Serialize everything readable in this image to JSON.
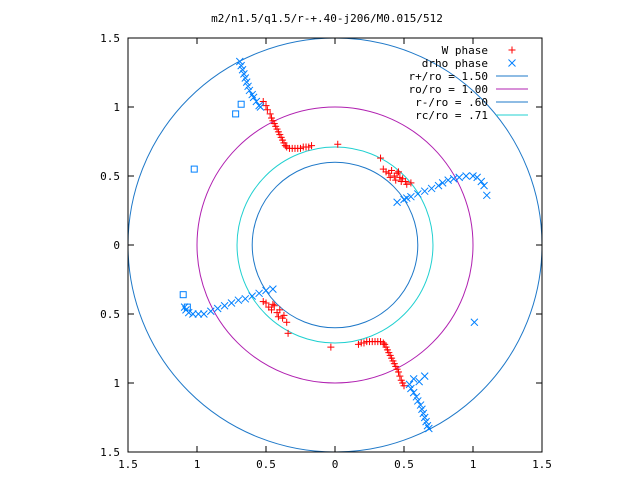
{
  "chart_data": {
    "type": "scatter",
    "title": "m2/n1.5/q1.5/r-+.40-j206/M0.015/512",
    "xlabel": "",
    "ylabel": "",
    "xlim": [
      -1.5,
      1.5
    ],
    "ylim": [
      -1.5,
      1.5
    ],
    "x_ticks": [
      "1.5",
      "1",
      "0.5",
      "0",
      "0.5",
      "1",
      "1.5"
    ],
    "y_ticks": [
      "1.5",
      "1",
      "0.5",
      "0",
      "0.5",
      "1",
      "1.5"
    ],
    "x_tick_values": [
      -1.5,
      -1,
      -0.5,
      0,
      0.5,
      1,
      1.5
    ],
    "y_tick_values": [
      1.5,
      1,
      0.5,
      0,
      -0.5,
      -1,
      -1.5
    ],
    "grid": false,
    "legend_position": "top-right",
    "legend": [
      {
        "label": "W phase",
        "marker": "plus",
        "color": "#ff0000"
      },
      {
        "label": "drho phase",
        "marker": "cross",
        "color": "#0080ff"
      },
      {
        "label": "r+/ro = 1.50",
        "marker": "line",
        "color": "#1e78c8"
      },
      {
        "label": "ro/ro = 1.00",
        "marker": "line",
        "color": "#b020b0"
      },
      {
        "label": "r-/ro = .60",
        "marker": "line",
        "color": "#1e78c8"
      },
      {
        "label": "rc/ro = .71",
        "marker": "line",
        "color": "#20d0d0"
      }
    ],
    "circles": [
      {
        "name": "r+/ro = 1.50",
        "r": 1.5,
        "color": "#1e78c8"
      },
      {
        "name": "ro/ro = 1.00",
        "r": 1.0,
        "color": "#b020b0"
      },
      {
        "name": "r-/ro = .60",
        "r": 0.6,
        "color": "#1e78c8"
      },
      {
        "name": "rc/ro = .71",
        "r": 0.71,
        "color": "#20d0d0"
      }
    ],
    "series": [
      {
        "name": "W phase",
        "color": "#ff0000",
        "marker": "plus",
        "points": [
          [
            -0.52,
            1.04
          ],
          [
            -0.5,
            1.01
          ],
          [
            -0.49,
            0.98
          ],
          [
            -0.47,
            0.95
          ],
          [
            -0.46,
            0.92
          ],
          [
            -0.45,
            0.9
          ],
          [
            -0.44,
            0.88
          ],
          [
            -0.43,
            0.86
          ],
          [
            -0.42,
            0.84
          ],
          [
            -0.41,
            0.82
          ],
          [
            -0.4,
            0.8
          ],
          [
            -0.39,
            0.78
          ],
          [
            -0.38,
            0.76
          ],
          [
            -0.37,
            0.74
          ],
          [
            -0.36,
            0.72
          ],
          [
            -0.35,
            0.71
          ],
          [
            -0.33,
            0.7
          ],
          [
            -0.31,
            0.7
          ],
          [
            -0.29,
            0.7
          ],
          [
            -0.27,
            0.7
          ],
          [
            -0.25,
            0.7
          ],
          [
            -0.23,
            0.71
          ],
          [
            -0.21,
            0.71
          ],
          [
            -0.19,
            0.71
          ],
          [
            -0.17,
            0.72
          ],
          [
            0.02,
            0.73
          ],
          [
            0.33,
            0.63
          ],
          [
            0.35,
            0.55
          ],
          [
            0.37,
            0.53
          ],
          [
            0.39,
            0.52
          ],
          [
            0.41,
            0.54
          ],
          [
            0.43,
            0.5
          ],
          [
            0.44,
            0.47
          ],
          [
            0.45,
            0.52
          ],
          [
            0.47,
            0.49
          ],
          [
            0.48,
            0.46
          ],
          [
            0.49,
            0.48
          ],
          [
            0.51,
            0.46
          ],
          [
            0.52,
            0.44
          ],
          [
            0.55,
            0.45
          ],
          [
            0.4,
            0.49
          ],
          [
            0.46,
            0.53
          ],
          [
            -0.52,
            -0.41
          ],
          [
            -0.5,
            -0.42
          ],
          [
            -0.48,
            -0.45
          ],
          [
            -0.46,
            -0.47
          ],
          [
            -0.44,
            -0.44
          ],
          [
            -0.42,
            -0.49
          ],
          [
            -0.41,
            -0.52
          ],
          [
            -0.4,
            -0.47
          ],
          [
            -0.38,
            -0.53
          ],
          [
            -0.37,
            -0.51
          ],
          [
            -0.45,
            -0.43
          ],
          [
            -0.35,
            -0.56
          ],
          [
            -0.34,
            -0.64
          ],
          [
            -0.03,
            -0.74
          ],
          [
            0.17,
            -0.72
          ],
          [
            0.19,
            -0.71
          ],
          [
            0.21,
            -0.71
          ],
          [
            0.23,
            -0.7
          ],
          [
            0.25,
            -0.7
          ],
          [
            0.27,
            -0.7
          ],
          [
            0.29,
            -0.7
          ],
          [
            0.31,
            -0.7
          ],
          [
            0.33,
            -0.7
          ],
          [
            0.35,
            -0.71
          ],
          [
            0.36,
            -0.72
          ],
          [
            0.37,
            -0.74
          ],
          [
            0.38,
            -0.76
          ],
          [
            0.39,
            -0.78
          ],
          [
            0.4,
            -0.8
          ],
          [
            0.41,
            -0.82
          ],
          [
            0.42,
            -0.84
          ],
          [
            0.43,
            -0.86
          ],
          [
            0.44,
            -0.88
          ],
          [
            0.45,
            -0.9
          ],
          [
            0.46,
            -0.92
          ],
          [
            0.47,
            -0.95
          ],
          [
            0.48,
            -0.98
          ],
          [
            0.49,
            -1.0
          ],
          [
            0.5,
            -1.02
          ]
        ]
      },
      {
        "name": "drho phase",
        "color": "#0080ff",
        "marker": "cross",
        "points": [
          [
            -0.69,
            1.33
          ],
          [
            -0.68,
            1.3
          ],
          [
            -0.67,
            1.27
          ],
          [
            -0.66,
            1.24
          ],
          [
            -0.65,
            1.21
          ],
          [
            -0.64,
            1.18
          ],
          [
            -0.63,
            1.15
          ],
          [
            -0.62,
            1.12
          ],
          [
            -0.6,
            1.09
          ],
          [
            -0.59,
            1.07
          ],
          [
            -0.57,
            1.04
          ],
          [
            -0.55,
            1.01
          ],
          [
            -0.54,
            1.0
          ],
          [
            0.5,
            0.33
          ],
          [
            0.55,
            0.35
          ],
          [
            0.6,
            0.37
          ],
          [
            0.65,
            0.39
          ],
          [
            0.7,
            0.41
          ],
          [
            0.75,
            0.43
          ],
          [
            0.78,
            0.45
          ],
          [
            0.82,
            0.47
          ],
          [
            0.86,
            0.48
          ],
          [
            0.9,
            0.49
          ],
          [
            0.95,
            0.5
          ],
          [
            1.0,
            0.5
          ],
          [
            1.03,
            0.49
          ],
          [
            1.06,
            0.46
          ],
          [
            1.08,
            0.43
          ],
          [
            1.1,
            0.36
          ],
          [
            0.52,
            0.34
          ],
          [
            0.45,
            0.31
          ],
          [
            -0.99,
            -0.5
          ],
          [
            -1.03,
            -0.5
          ],
          [
            -1.06,
            -0.49
          ],
          [
            -1.08,
            -0.47
          ],
          [
            -1.09,
            -0.45
          ],
          [
            -0.95,
            -0.5
          ],
          [
            -0.9,
            -0.48
          ],
          [
            -0.85,
            -0.46
          ],
          [
            -0.8,
            -0.44
          ],
          [
            -0.75,
            -0.42
          ],
          [
            -0.7,
            -0.4
          ],
          [
            -0.65,
            -0.39
          ],
          [
            -0.6,
            -0.37
          ],
          [
            -0.55,
            -0.35
          ],
          [
            -0.5,
            -0.33
          ],
          [
            -0.45,
            -0.32
          ],
          [
            0.54,
            -1.01
          ],
          [
            0.55,
            -1.04
          ],
          [
            0.57,
            -1.07
          ],
          [
            0.59,
            -1.1
          ],
          [
            0.6,
            -1.13
          ],
          [
            0.62,
            -1.16
          ],
          [
            0.63,
            -1.19
          ],
          [
            0.64,
            -1.22
          ],
          [
            0.65,
            -1.25
          ],
          [
            0.66,
            -1.28
          ],
          [
            0.67,
            -1.31
          ],
          [
            0.68,
            -1.33
          ],
          [
            0.57,
            -0.97
          ],
          [
            0.61,
            -0.99
          ],
          [
            0.65,
            -0.95
          ],
          [
            1.01,
            -0.56
          ]
        ]
      },
      {
        "name": "squares",
        "color": "#0080ff",
        "marker": "square",
        "points": [
          [
            -0.68,
            1.02
          ],
          [
            -0.72,
            0.95
          ],
          [
            -1.02,
            0.55
          ],
          [
            -1.1,
            -0.36
          ],
          [
            -1.07,
            -0.45
          ]
        ]
      }
    ]
  }
}
